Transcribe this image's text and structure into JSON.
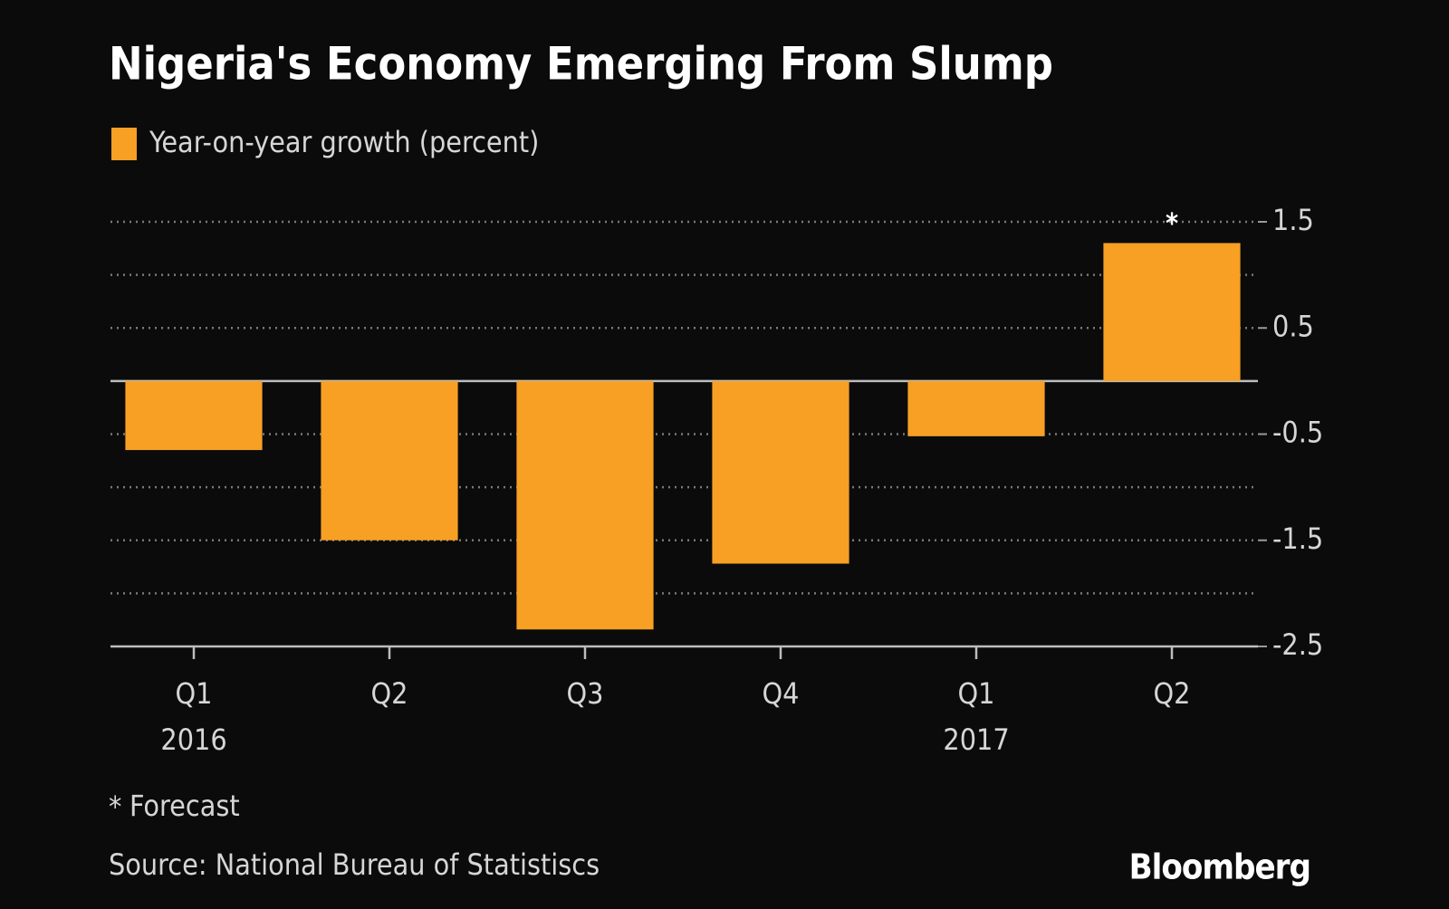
{
  "chart_data": {
    "type": "bar",
    "title": "Nigeria's Economy Emerging From Slump",
    "categories": [
      "Q1",
      "Q2",
      "Q3",
      "Q4",
      "Q1",
      "Q2"
    ],
    "years": [
      "2016",
      null,
      null,
      null,
      "2017",
      null
    ],
    "series": [
      {
        "name": "Year-on-year growth (percent)",
        "color": "#f7a024",
        "values": [
          -0.65,
          -1.5,
          -2.34,
          -1.72,
          -0.52,
          1.3
        ]
      }
    ],
    "ylim": [
      -2.5,
      1.5
    ],
    "yticks": [
      1.5,
      0.5,
      -0.5,
      -1.5,
      -2.5
    ],
    "minor_yticks": [
      1,
      0,
      -1,
      -2
    ],
    "grid": true,
    "forecast_index": 5,
    "forecast_symbol": "*",
    "forecast_label": "Forecast",
    "source": "Source: National Bureau of Statistiscs",
    "brand": "Bloomberg"
  }
}
